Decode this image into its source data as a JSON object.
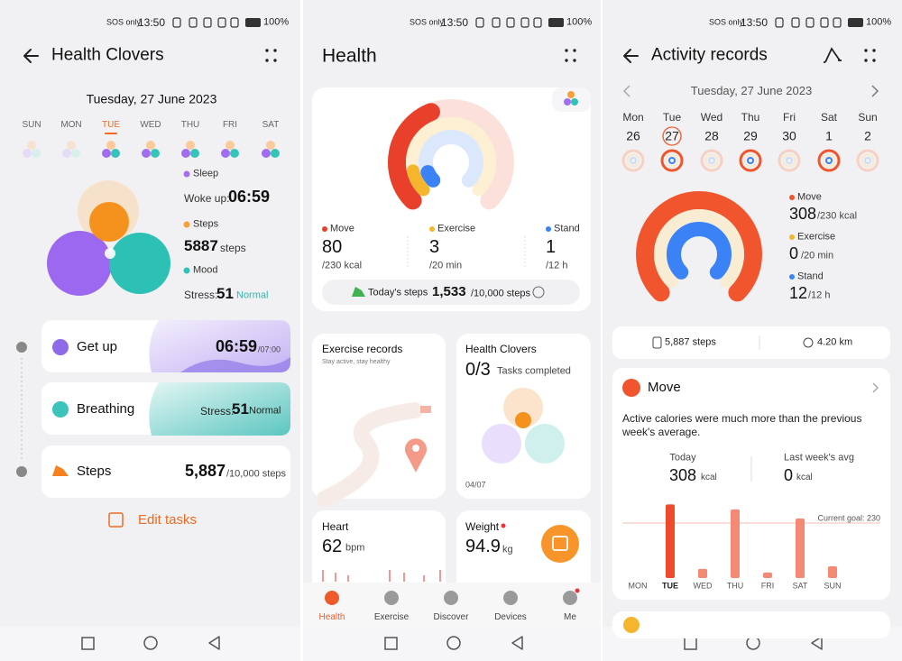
{
  "health_clovers": {
    "status": {
      "network": "SOS only",
      "time": "13:50",
      "battery": "100%"
    },
    "title": "Health Clovers",
    "date": "Tuesday, 27 June 2023",
    "days": [
      "SUN",
      "MON",
      "TUE",
      "WED",
      "THU",
      "FRI",
      "SAT"
    ],
    "selected_day": 2,
    "sleep": {
      "label": "Sleep",
      "caption": "Woke up:",
      "value": "06:59"
    },
    "steps": {
      "label": "Steps",
      "value": 5887,
      "unit": "steps"
    },
    "mood": {
      "label": "Mood",
      "caption": "Stress:",
      "value": 51,
      "level": "Normal"
    },
    "tasks": [
      {
        "name": "Get up",
        "value": "06:59",
        "target": "/07:00"
      },
      {
        "name": "Breathing",
        "caption": "Stress:",
        "value": 51,
        "level": "Normal"
      },
      {
        "name": "Steps",
        "value": "5,887",
        "target": "/10,000 steps"
      }
    ],
    "edit": "Edit tasks"
  },
  "health": {
    "status": {
      "network": "SOS only",
      "time": "13:50",
      "battery": "100%"
    },
    "title": "Health",
    "rings": [
      {
        "label": "Move",
        "value": 80,
        "goal": "/230 kcal",
        "color": "#e8402a"
      },
      {
        "label": "Exercise",
        "value": 3,
        "goal": "/20 min",
        "color": "#f5b62e"
      },
      {
        "label": "Stand",
        "value": 1,
        "goal": "/12 h",
        "color": "#3a82f6"
      }
    ],
    "today_steps": {
      "label": "Today's steps",
      "value": "1,533",
      "goal": "/10,000 steps"
    },
    "exercise_records": {
      "title": "Exercise records",
      "subtitle": "Stay active, stay healthy"
    },
    "health_clovers": {
      "title": "Health Clovers",
      "value": "0/3",
      "caption": "Tasks completed",
      "date": "04/07"
    },
    "heart": {
      "title": "Heart",
      "value": 62,
      "unit": "bpm"
    },
    "weight": {
      "title": "Weight",
      "value": 94.9,
      "unit": "kg"
    },
    "nav": {
      "items": [
        "Health",
        "Exercise",
        "Discover",
        "Devices",
        "Me"
      ],
      "active": 0
    }
  },
  "activity_records": {
    "status": {
      "network": "SOS only",
      "time": "13:50",
      "battery": "100%"
    },
    "title": "Activity records",
    "date": "Tuesday, 27 June 2023",
    "week": {
      "days": [
        "Mon",
        "Tue",
        "Wed",
        "Thu",
        "Fri",
        "Sat",
        "Sun"
      ],
      "dates": [
        26,
        27,
        28,
        29,
        30,
        1,
        2
      ],
      "selected": 1
    },
    "rings": [
      {
        "label": "Move",
        "value": 308,
        "goal": "/230 kcal",
        "color": "#f0552d"
      },
      {
        "label": "Exercise",
        "value": 0,
        "goal": "/20 min",
        "color": "#f5b62e"
      },
      {
        "label": "Stand",
        "value": 12,
        "goal": "/12 h",
        "color": "#3a82f6"
      }
    ],
    "summary": {
      "steps": "5,887 steps",
      "distance": "4.20 km"
    },
    "move": {
      "title": "Move",
      "description": "Active calories were much more than the previous week's average.",
      "today": {
        "label": "Today",
        "value": 308,
        "unit": "kcal"
      },
      "last_week": {
        "label": "Last week's avg",
        "value": 0,
        "unit": "kcal"
      },
      "chart": {
        "categories": [
          "MON",
          "TUE",
          "WED",
          "THU",
          "FRI",
          "SAT",
          "SUN"
        ],
        "values": [
          0,
          308,
          38,
          287,
          23,
          249,
          49
        ],
        "goal": {
          "value": 230,
          "label": "Current goal: 230"
        },
        "color": "#f48a74",
        "highlight_color": "#ee4a2c",
        "selected": 1
      }
    }
  }
}
